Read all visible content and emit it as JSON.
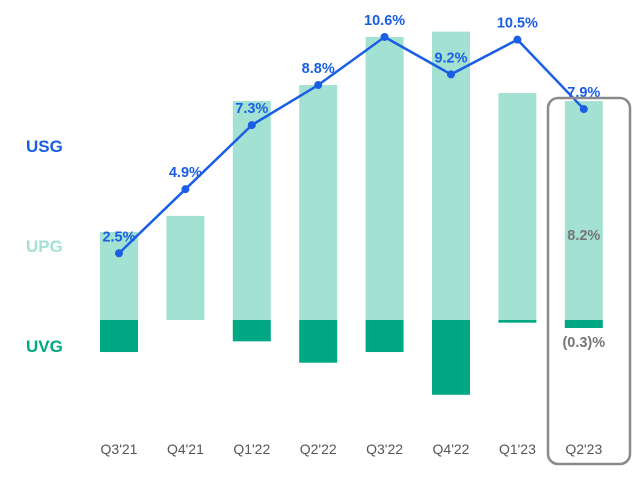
{
  "colors": {
    "usg": "#1a5ee6",
    "upg": "#a3e2d2",
    "uvg": "#00a883",
    "highlight_border": "#8a8a8a",
    "inner_label": "#757575",
    "tick": "#555555"
  },
  "legend": [
    {
      "key": "usg",
      "label": "USG",
      "color": "#1a5ee6"
    },
    {
      "key": "upg",
      "label": "UPG",
      "color": "#a3e2d2"
    },
    {
      "key": "uvg",
      "label": "UVG",
      "color": "#00a883"
    }
  ],
  "chart_data": {
    "type": "bar",
    "categories": [
      "Q3'21",
      "Q4'21",
      "Q1'22",
      "Q2'22",
      "Q3'22",
      "Q4'22",
      "Q1'23",
      "Q2'23"
    ],
    "series": [
      {
        "name": "USG",
        "kind": "line",
        "values": [
          2.5,
          4.9,
          7.3,
          8.8,
          10.6,
          9.2,
          10.5,
          7.9
        ],
        "labels": [
          "2.5%",
          "4.9%",
          "7.3%",
          "8.8%",
          "10.6%",
          "9.2%",
          "10.5%",
          "7.9%"
        ]
      },
      {
        "name": "UPG",
        "kind": "bar",
        "values": [
          3.3,
          3.9,
          8.2,
          8.8,
          10.6,
          10.8,
          8.5,
          8.2
        ]
      },
      {
        "name": "UVG",
        "kind": "bar",
        "values": [
          -1.2,
          0.0,
          -0.8,
          -1.6,
          -1.2,
          -2.8,
          -0.1,
          -0.3
        ]
      }
    ],
    "inner_labels": {
      "category": "Q2'23",
      "upg": "8.2%",
      "uvg": "(0.3)%"
    },
    "highlighted_category": "Q2'23",
    "grid": false,
    "legend_position": "left"
  }
}
